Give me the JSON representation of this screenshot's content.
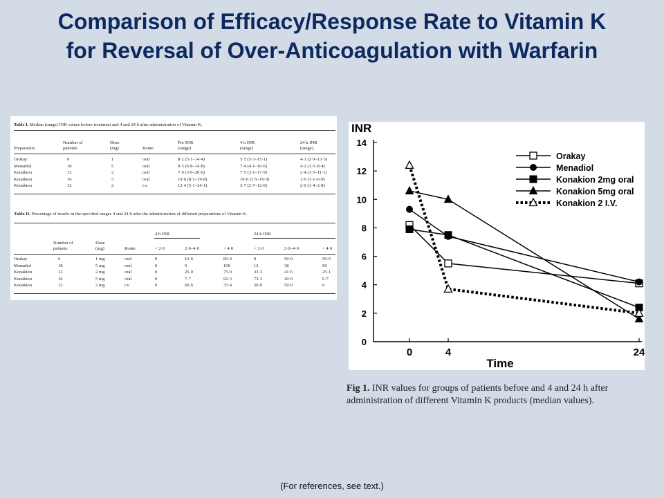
{
  "title": {
    "line1": "Comparison of Efficacy/Response Rate to Vitamin K",
    "line2": "for Reversal of Over-Anticoagulation with Warfarin"
  },
  "table1": {
    "label": "Table I.",
    "caption": "Median (range) INR values before treatment and 4 and 24 h after administration of Vitamin K.",
    "headers": [
      [
        "Preparation"
      ],
      [
        "Number of",
        "patients"
      ],
      [
        "Dose",
        "(mg)"
      ],
      [
        "Route"
      ],
      [
        "Pre-INR",
        "(range)"
      ],
      [
        "4 h INR",
        "(range)"
      ],
      [
        "24 h INR",
        "(range)"
      ]
    ],
    "rows": [
      [
        "Orakay",
        "6",
        "1",
        "oral",
        "8·2 (5·1–14·4)",
        "5·5 (3·3–15·1)",
        "4·1 (2·9–13·5)"
      ],
      [
        "Menadiol",
        "18",
        "5",
        "oral",
        "9·3 (6·8–14·8)",
        "7·4 (4·1–16·6)",
        "4·2 (1·5–8·4)"
      ],
      [
        "Konakion",
        "12",
        "2",
        "oral",
        "7·9 (3·6–20·0)",
        "7·5 (3·1–17·9)",
        "2·4 (1·5–11·1)"
      ],
      [
        "Konakion",
        "16",
        "5",
        "oral",
        "10·6 (8·1–19·8)",
        "10·0 (3·5–16·9)",
        "1·6 (1·1–6·8)"
      ],
      [
        "Konakion",
        "12",
        "2",
        "i.v.",
        "12·4 (5·1–24·1)",
        "3·7 (2·7–12·0)",
        "2·0 (1·4–2·8)"
      ]
    ]
  },
  "table2": {
    "label": "Table II.",
    "caption": "Percentage of results in the specified ranges 4 and 24 h after the administration of different preparations of Vitamin K.",
    "group_headers": [
      "4 h INR",
      "24 h INR"
    ],
    "headers": [
      [
        "Number of",
        "patients"
      ],
      [
        "Dose",
        "(mg)"
      ],
      [
        "Route"
      ],
      [
        "< 2·0"
      ],
      [
        "2·0–4·0"
      ],
      [
        "> 4·0"
      ],
      [
        "< 2·0"
      ],
      [
        "2·0–4·0"
      ],
      [
        "> 4·0"
      ]
    ],
    "rows": [
      [
        "Orakay",
        "6",
        "1 mg",
        "oral",
        "0",
        "16·6",
        "83·4",
        "0",
        "50·0",
        "50·0"
      ],
      [
        "Menadiol",
        "18",
        "5 mg",
        "oral",
        "0",
        "0",
        "100",
        "12",
        "38",
        "50"
      ],
      [
        "Konakion",
        "12",
        "2 mg",
        "oral",
        "0",
        "25·0",
        "75·0",
        "33·3",
        "41·6",
        "25·1"
      ],
      [
        "Konakion",
        "16",
        "5 mg",
        "oral",
        "0",
        "7·7",
        "92·3",
        "73·3",
        "20·0",
        "6·7"
      ],
      [
        "Konakion",
        "12",
        "2 mg",
        "i.v.",
        "0",
        "66·6",
        "33·4",
        "50·0",
        "50·0",
        "0"
      ]
    ]
  },
  "chart_data": {
    "type": "line",
    "title": "",
    "xlabel": "Time",
    "ylabel": "INR",
    "x": [
      0,
      4,
      24
    ],
    "xticks": [
      0,
      4,
      24
    ],
    "yticks": [
      0,
      2,
      4,
      6,
      8,
      10,
      12,
      14
    ],
    "xlim": [
      0,
      24
    ],
    "ylim": [
      0,
      14
    ],
    "grid": false,
    "legend_position": "top-right",
    "series": [
      {
        "name": "Orakay",
        "values": [
          8.2,
          5.5,
          4.1
        ],
        "marker": "open-square",
        "dash": "solid"
      },
      {
        "name": "Menadiol",
        "values": [
          9.3,
          7.4,
          4.2
        ],
        "marker": "filled-circle",
        "dash": "solid"
      },
      {
        "name": "Konakion 2mg oral",
        "values": [
          7.9,
          7.5,
          2.4
        ],
        "marker": "filled-square",
        "dash": "solid"
      },
      {
        "name": "Konakion 5mg oral",
        "values": [
          10.6,
          10.0,
          1.6
        ],
        "marker": "filled-triangle",
        "dash": "solid"
      },
      {
        "name": "Konakion 2 I.V.",
        "values": [
          12.4,
          3.7,
          2.0
        ],
        "marker": "open-triangle",
        "dash": "dotted"
      }
    ]
  },
  "figure_caption": {
    "label": "Fig 1.",
    "text": "INR values for groups of patients before and 4 and 24 h after administration of different Vitamin K products (median values)."
  },
  "footnote": "(For references, see text.)"
}
